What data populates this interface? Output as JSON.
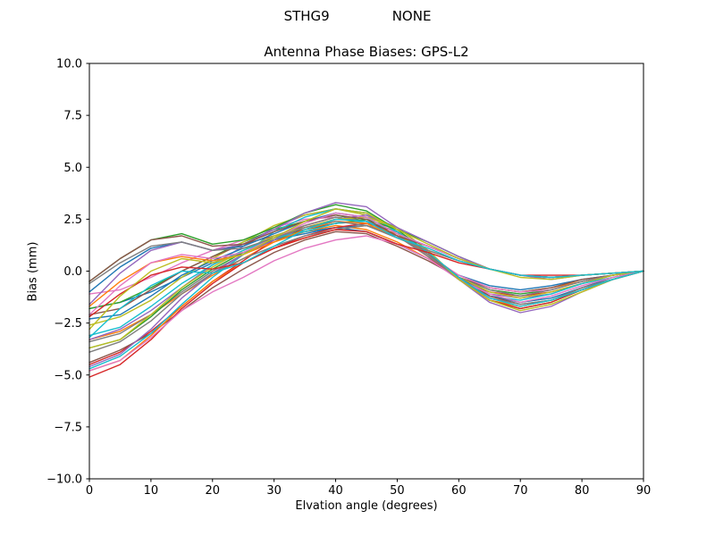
{
  "figure": {
    "suptitle_left": "STHG9",
    "suptitle_right": "NONE",
    "title": "Antenna Phase Biases: GPS-L2",
    "xlabel": "Elvation angle (degrees)",
    "ylabel": "Bias (mm)",
    "background_color": "#ffffff",
    "axes_color": "#000000"
  },
  "chart_data": {
    "type": "line",
    "suptitle": "STHG9          NONE",
    "title": "Antenna Phase Biases: GPS-L2",
    "xlabel": "Elvation angle (degrees)",
    "ylabel": "Bias (mm)",
    "xlim": [
      0,
      90
    ],
    "ylim": [
      -10,
      10
    ],
    "xticks": [
      0,
      10,
      20,
      30,
      40,
      50,
      60,
      70,
      80,
      90
    ],
    "xticklabels": [
      "0",
      "10",
      "20",
      "30",
      "40",
      "50",
      "60",
      "70",
      "80",
      "90"
    ],
    "yticks": [
      10,
      7.5,
      5,
      2.5,
      0,
      -2.5,
      -5,
      -7.5,
      -10
    ],
    "yticklabels": [
      "10.0",
      "7.5",
      "5.0",
      "2.5",
      "0.0",
      "−2.5",
      "−5.0",
      "−7.5",
      "−10.0"
    ],
    "grid": false,
    "legend": "none",
    "x": [
      0,
      5,
      10,
      15,
      20,
      25,
      30,
      35,
      40,
      45,
      50,
      55,
      60,
      65,
      70,
      75,
      80,
      85,
      90
    ],
    "series": [
      {
        "color": "#1f77b4",
        "values": [
          -1.8,
          -1.5,
          -1.0,
          -0.3,
          0.4,
          0.9,
          1.5,
          1.9,
          2.1,
          1.9,
          1.3,
          0.6,
          -0.2,
          -0.7,
          -0.9,
          -0.7,
          -0.4,
          -0.2,
          0
        ]
      },
      {
        "color": "#ff7f0e",
        "values": [
          -3.3,
          -2.9,
          -2.1,
          -1.1,
          -0.2,
          0.6,
          1.4,
          1.9,
          2.2,
          2.0,
          1.4,
          0.6,
          -0.3,
          -0.8,
          -1.0,
          -0.8,
          -0.5,
          -0.2,
          0
        ]
      },
      {
        "color": "#2ca02c",
        "values": [
          -1.8,
          -1.5,
          -0.8,
          0.0,
          0.7,
          1.4,
          2.0,
          2.4,
          2.7,
          2.4,
          1.7,
          0.8,
          -0.3,
          -0.9,
          -1.1,
          -0.9,
          -0.5,
          -0.2,
          0
        ]
      },
      {
        "color": "#d62728",
        "values": [
          -4.5,
          -3.9,
          -2.9,
          -1.7,
          -0.5,
          0.5,
          1.5,
          2.2,
          2.6,
          2.4,
          1.7,
          0.7,
          -0.4,
          -1.0,
          -1.2,
          -1.0,
          -0.6,
          -0.2,
          0
        ]
      },
      {
        "color": "#9467bd",
        "values": [
          -3.3,
          -2.8,
          -1.9,
          -0.8,
          0.3,
          1.2,
          2.1,
          2.7,
          3.0,
          2.8,
          1.9,
          0.9,
          -0.3,
          -1.1,
          -1.3,
          -1.1,
          -0.6,
          -0.2,
          0
        ]
      },
      {
        "color": "#8c564b",
        "values": [
          -4.4,
          -3.8,
          -3.0,
          -1.9,
          -0.8,
          0.1,
          0.9,
          1.5,
          1.9,
          1.8,
          1.2,
          0.5,
          -0.3,
          -0.8,
          -1.0,
          -0.8,
          -0.4,
          -0.2,
          0
        ]
      },
      {
        "color": "#e377c2",
        "values": [
          -1.1,
          -0.9,
          -0.3,
          0.4,
          1.0,
          1.5,
          2.1,
          2.5,
          2.6,
          2.4,
          1.7,
          0.8,
          -0.2,
          -0.8,
          -1.0,
          -0.9,
          -0.5,
          -0.2,
          0
        ]
      },
      {
        "color": "#7f7f7f",
        "values": [
          -3.4,
          -3.0,
          -2.1,
          -1.0,
          0.0,
          0.8,
          1.7,
          2.2,
          2.6,
          2.4,
          1.7,
          0.7,
          -0.3,
          -0.9,
          -1.2,
          -0.9,
          -0.5,
          -0.2,
          0
        ]
      },
      {
        "color": "#bcbd22",
        "values": [
          -2.6,
          -2.2,
          -1.4,
          -0.3,
          0.6,
          1.4,
          2.2,
          2.7,
          3.0,
          2.7,
          1.9,
          0.9,
          -0.3,
          -1.0,
          -1.3,
          -1.0,
          -0.6,
          -0.2,
          0
        ]
      },
      {
        "color": "#17becf",
        "values": [
          -4.7,
          -4.1,
          -3.0,
          -1.6,
          -0.3,
          0.8,
          1.9,
          2.6,
          3.0,
          2.8,
          1.9,
          0.8,
          -0.4,
          -1.2,
          -1.4,
          -1.1,
          -0.6,
          -0.3,
          0
        ]
      },
      {
        "color": "#1f77b4",
        "values": [
          -2.3,
          -2.1,
          -1.2,
          -0.2,
          0.5,
          1.1,
          1.5,
          1.8,
          2.1,
          2.2,
          1.7,
          0.9,
          -0.3,
          -1.2,
          -1.5,
          -1.3,
          -0.8,
          -0.3,
          0
        ]
      },
      {
        "color": "#ff7f0e",
        "values": [
          -4.8,
          -4.3,
          -3.1,
          -1.7,
          -0.5,
          0.4,
          1.1,
          1.6,
          2.0,
          2.2,
          1.8,
          0.8,
          -0.4,
          -1.4,
          -1.7,
          -1.4,
          -0.9,
          -0.4,
          0
        ]
      },
      {
        "color": "#2ca02c",
        "values": [
          -3.7,
          -3.3,
          -2.2,
          -0.9,
          0.1,
          0.9,
          1.5,
          2.0,
          2.3,
          2.5,
          2.0,
          0.9,
          -0.4,
          -1.4,
          -1.8,
          -1.5,
          -0.9,
          -0.4,
          0
        ]
      },
      {
        "color": "#d62728",
        "values": [
          -5.1,
          -4.5,
          -3.3,
          -1.8,
          -0.6,
          0.4,
          1.1,
          1.7,
          2.1,
          2.3,
          1.9,
          0.9,
          -0.4,
          -1.4,
          -1.8,
          -1.5,
          -0.9,
          -0.4,
          0
        ]
      },
      {
        "color": "#9467bd",
        "values": [
          -4.6,
          -4.0,
          -2.8,
          -1.3,
          -0.1,
          0.8,
          1.5,
          2.1,
          2.5,
          2.7,
          2.1,
          1.0,
          -0.4,
          -1.5,
          -2.0,
          -1.7,
          -1.0,
          -0.4,
          0
        ]
      },
      {
        "color": "#8c564b",
        "values": [
          -2.1,
          -1.8,
          -0.9,
          0.0,
          0.7,
          1.3,
          1.7,
          2.0,
          2.3,
          2.4,
          1.9,
          0.9,
          -0.3,
          -1.2,
          -1.6,
          -1.4,
          -0.8,
          -0.4,
          0
        ]
      },
      {
        "color": "#e377c2",
        "values": [
          -4.8,
          -4.3,
          -3.2,
          -1.9,
          -1.0,
          -0.3,
          0.5,
          1.1,
          1.5,
          1.7,
          1.3,
          0.6,
          -0.4,
          -1.1,
          -1.5,
          -1.2,
          -0.7,
          -0.3,
          0
        ]
      },
      {
        "color": "#7f7f7f",
        "values": [
          -3.9,
          -3.4,
          -2.4,
          -1.1,
          -0.1,
          0.6,
          1.2,
          1.7,
          2.0,
          2.2,
          1.7,
          0.8,
          -0.4,
          -1.3,
          -1.6,
          -1.4,
          -0.8,
          -0.4,
          0
        ]
      },
      {
        "color": "#bcbd22",
        "values": [
          -3.7,
          -3.3,
          -2.1,
          -0.8,
          0.2,
          1.0,
          1.7,
          2.1,
          2.5,
          2.6,
          2.1,
          1.0,
          -0.4,
          -1.4,
          -1.9,
          -1.6,
          -1.0,
          -0.4,
          0
        ]
      },
      {
        "color": "#17becf",
        "values": [
          -3.1,
          -2.7,
          -1.7,
          -0.6,
          0.3,
          1.0,
          1.6,
          1.9,
          2.3,
          2.4,
          1.9,
          0.9,
          -0.3,
          -1.3,
          -1.7,
          -1.4,
          -0.9,
          -0.4,
          0
        ]
      },
      {
        "color": "#1f77b4",
        "values": [
          -1.0,
          0.2,
          1.1,
          1.4,
          1.0,
          1.2,
          1.8,
          2.4,
          2.8,
          2.6,
          1.8,
          1.2,
          0.6,
          0.1,
          -0.2,
          -0.3,
          -0.2,
          -0.1,
          0
        ]
      },
      {
        "color": "#ff7f0e",
        "values": [
          -1.7,
          -0.5,
          0.4,
          0.7,
          0.5,
          0.8,
          1.4,
          2.0,
          2.4,
          2.3,
          1.6,
          1.0,
          0.5,
          0.1,
          -0.2,
          -0.3,
          -0.2,
          -0.1,
          0
        ]
      },
      {
        "color": "#2ca02c",
        "values": [
          -0.5,
          0.6,
          1.5,
          1.8,
          1.3,
          1.5,
          2.1,
          2.8,
          3.2,
          2.9,
          2.0,
          1.4,
          0.7,
          0.1,
          -0.2,
          -0.3,
          -0.2,
          -0.1,
          0
        ]
      },
      {
        "color": "#d62728",
        "values": [
          -2.2,
          -1.1,
          -0.2,
          0.2,
          0.1,
          0.4,
          1.1,
          1.6,
          2.0,
          1.9,
          1.3,
          0.9,
          0.4,
          0.1,
          -0.2,
          -0.2,
          -0.2,
          -0.1,
          0
        ]
      },
      {
        "color": "#9467bd",
        "values": [
          -1.6,
          -0.1,
          1.0,
          1.4,
          1.0,
          1.3,
          2.0,
          2.8,
          3.3,
          3.1,
          2.1,
          1.4,
          0.7,
          0.1,
          -0.2,
          -0.4,
          -0.2,
          -0.1,
          0
        ]
      },
      {
        "color": "#8c564b",
        "values": [
          -0.5,
          0.6,
          1.5,
          1.7,
          1.2,
          1.3,
          1.9,
          2.4,
          2.7,
          2.5,
          1.7,
          1.2,
          0.6,
          0.1,
          -0.2,
          -0.3,
          -0.2,
          -0.1,
          0
        ]
      },
      {
        "color": "#e377c2",
        "values": [
          -2.1,
          -0.7,
          0.4,
          0.8,
          0.6,
          0.9,
          1.6,
          2.3,
          2.8,
          2.6,
          1.8,
          1.2,
          0.6,
          0.1,
          -0.2,
          -0.3,
          -0.2,
          -0.1,
          0
        ]
      },
      {
        "color": "#7f7f7f",
        "values": [
          -0.6,
          0.4,
          1.2,
          1.4,
          1.0,
          1.1,
          1.6,
          2.1,
          2.4,
          2.2,
          1.6,
          1.0,
          0.5,
          0.1,
          -0.2,
          -0.3,
          -0.2,
          -0.1,
          0
        ]
      },
      {
        "color": "#bcbd22",
        "values": [
          -2.8,
          -1.2,
          0.0,
          0.6,
          0.4,
          0.8,
          1.6,
          2.4,
          3.0,
          2.8,
          2.0,
          1.3,
          0.6,
          0.1,
          -0.3,
          -0.4,
          -0.2,
          -0.1,
          0
        ]
      },
      {
        "color": "#17becf",
        "values": [
          -3.2,
          -1.8,
          -0.7,
          0.0,
          -0.1,
          0.4,
          1.2,
          2.0,
          2.5,
          2.4,
          1.6,
          1.1,
          0.5,
          0.1,
          -0.2,
          -0.3,
          -0.2,
          -0.1,
          0
        ]
      }
    ]
  }
}
